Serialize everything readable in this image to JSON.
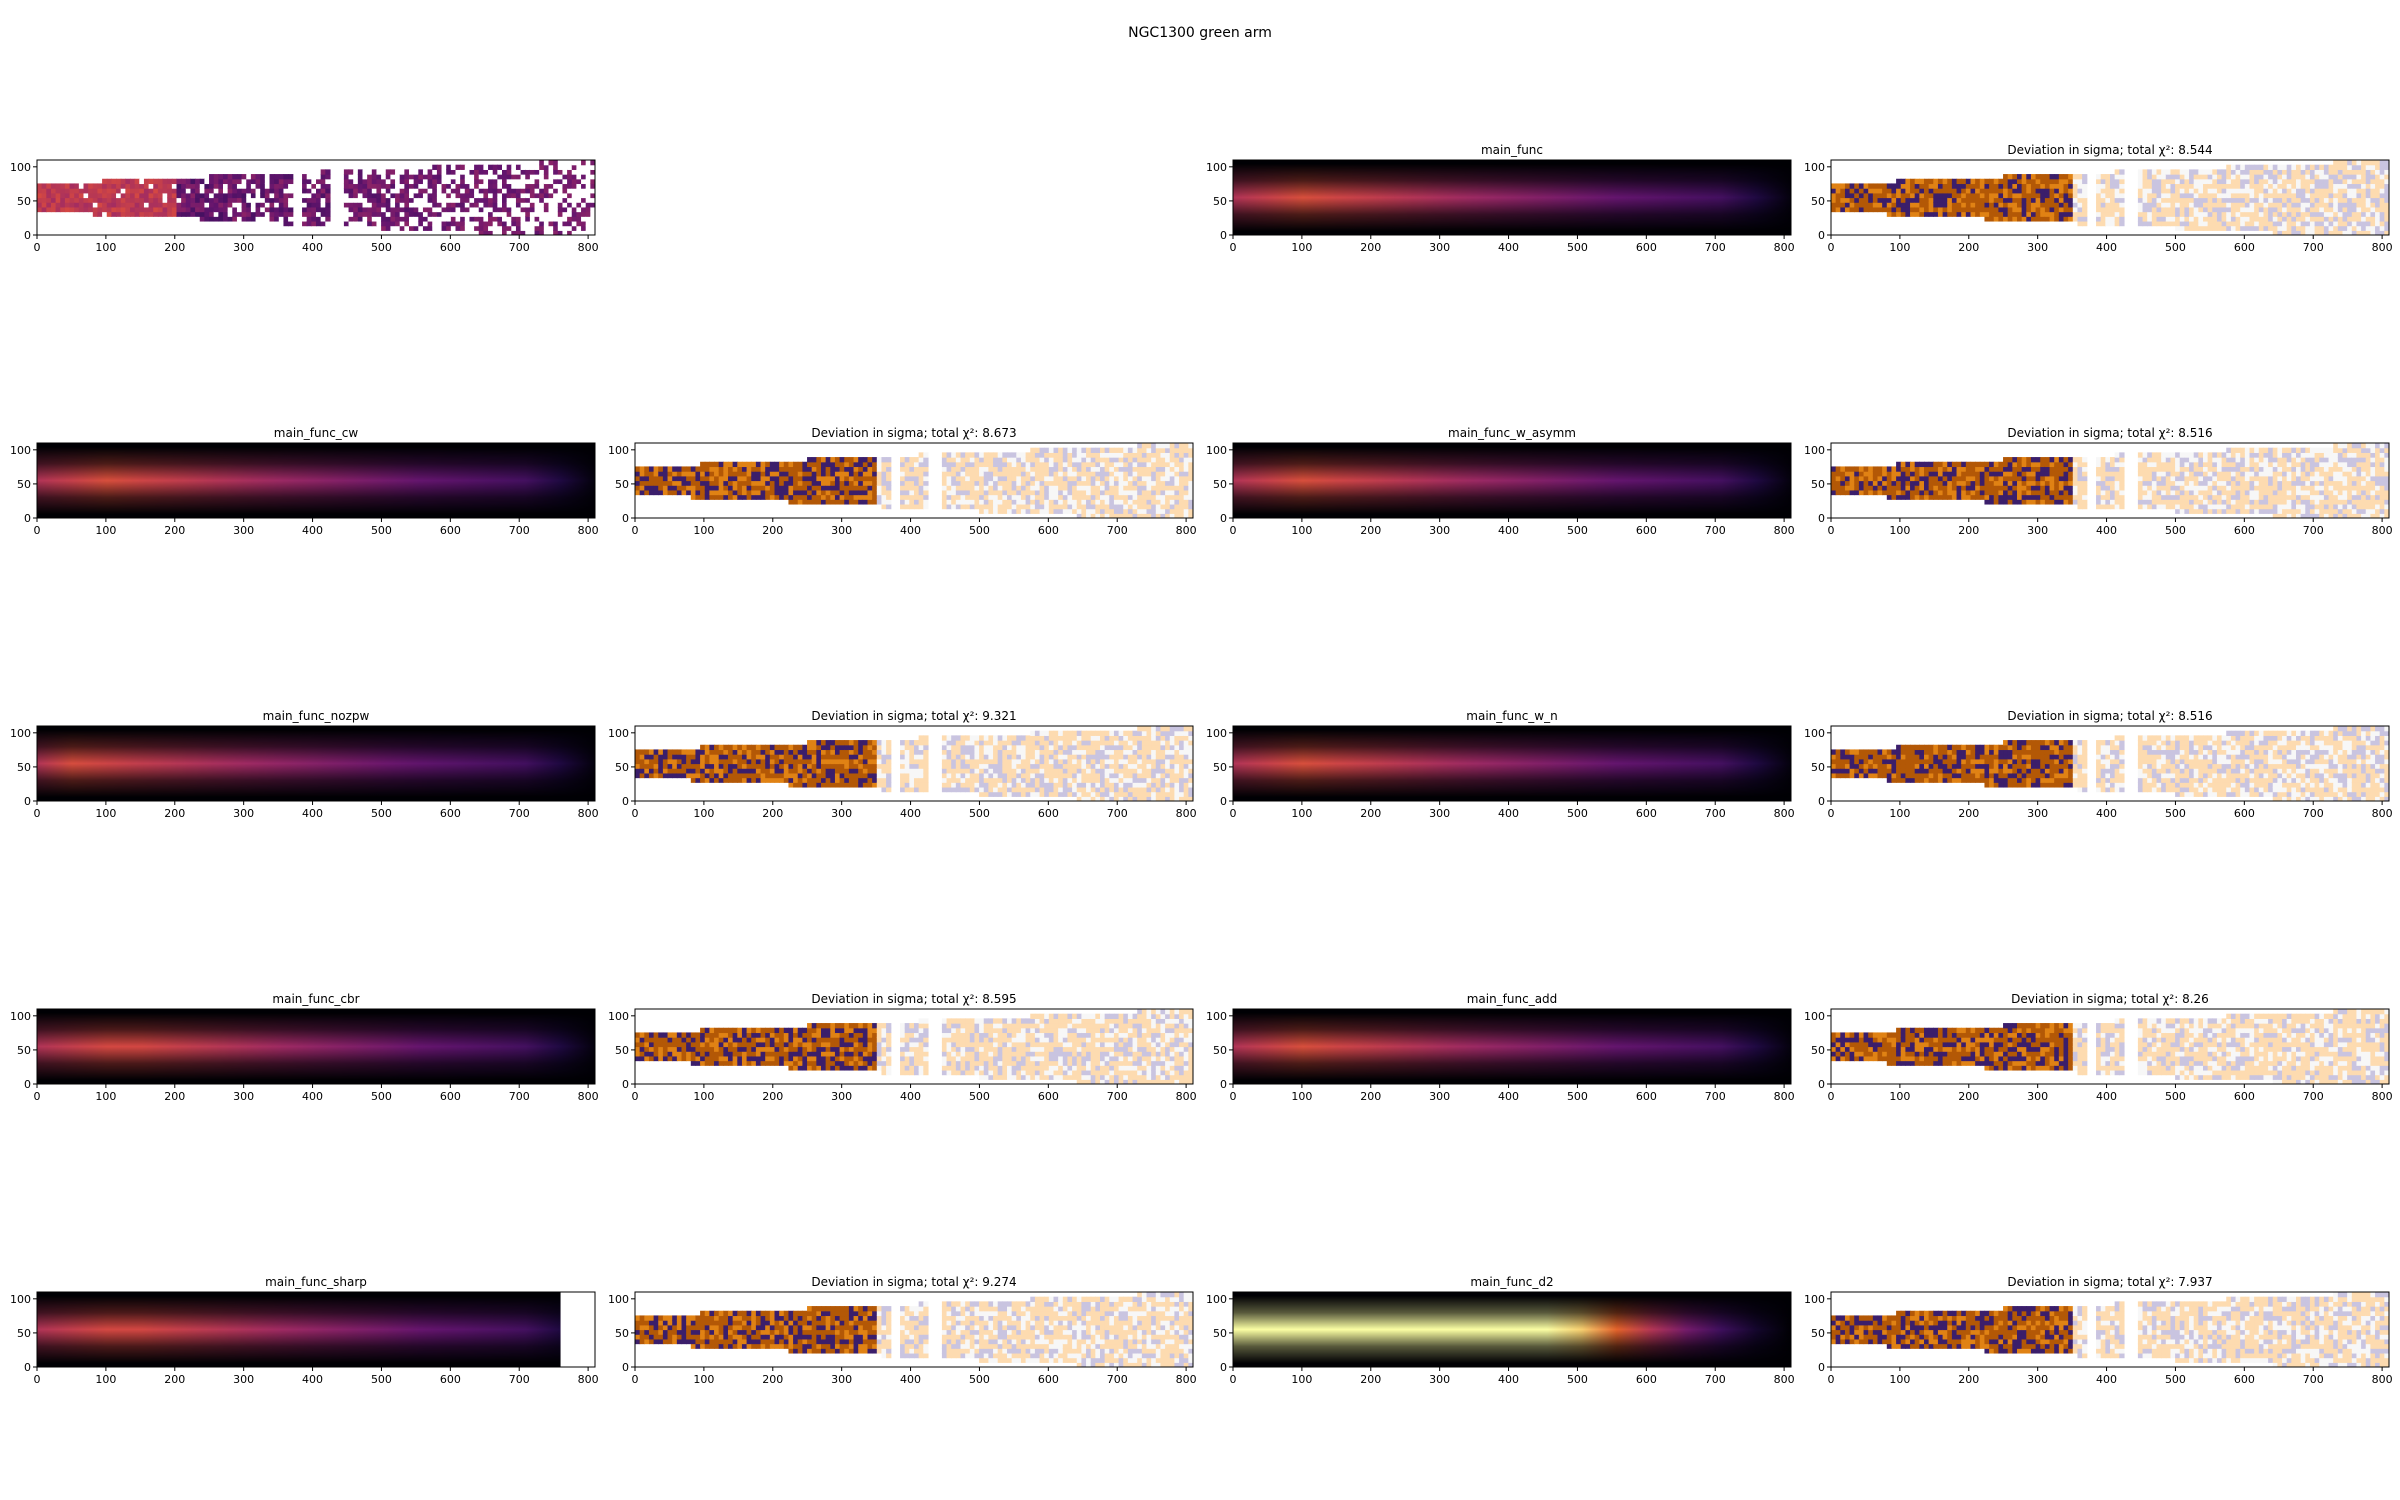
{
  "figure": {
    "suptitle": "NGC1300 green arm"
  },
  "chart_data": [
    {
      "type": "heatmap",
      "panel": "data",
      "title": "",
      "cmap": "inferno",
      "xlim": [
        0,
        810
      ],
      "ylim": [
        0,
        110
      ],
      "xticks": [
        0,
        100,
        200,
        300,
        400,
        500,
        600,
        700,
        800
      ],
      "yticks": [
        0,
        50,
        100
      ]
    },
    {
      "type": "heatmap",
      "panel": "model",
      "title": "main_func",
      "cmap": "inferno",
      "xlim": [
        0,
        810
      ],
      "ylim": [
        0,
        110
      ],
      "xticks": [
        0,
        100,
        200,
        300,
        400,
        500,
        600,
        700,
        800
      ],
      "yticks": [
        0,
        50,
        100
      ]
    },
    {
      "type": "heatmap",
      "panel": "residual",
      "title": "Deviation in sigma; total χ²: 8.544",
      "chi2": 8.544,
      "cmap": "PuOr",
      "xlim": [
        0,
        810
      ],
      "ylim": [
        0,
        110
      ],
      "xticks": [
        0,
        100,
        200,
        300,
        400,
        500,
        600,
        700,
        800
      ],
      "yticks": [
        0,
        50,
        100
      ]
    },
    {
      "type": "heatmap",
      "panel": "model",
      "title": "main_func_cw",
      "cmap": "inferno",
      "xlim": [
        0,
        810
      ],
      "ylim": [
        0,
        110
      ],
      "xticks": [
        0,
        100,
        200,
        300,
        400,
        500,
        600,
        700,
        800
      ],
      "yticks": [
        0,
        50,
        100
      ]
    },
    {
      "type": "heatmap",
      "panel": "residual",
      "title": "Deviation in sigma; total χ²: 8.673",
      "chi2": 8.673,
      "cmap": "PuOr",
      "xlim": [
        0,
        810
      ],
      "ylim": [
        0,
        110
      ],
      "xticks": [
        0,
        100,
        200,
        300,
        400,
        500,
        600,
        700,
        800
      ],
      "yticks": [
        0,
        50,
        100
      ]
    },
    {
      "type": "heatmap",
      "panel": "model",
      "title": "main_func_w_asymm",
      "cmap": "inferno",
      "xlim": [
        0,
        810
      ],
      "ylim": [
        0,
        110
      ],
      "xticks": [
        0,
        100,
        200,
        300,
        400,
        500,
        600,
        700,
        800
      ],
      "yticks": [
        0,
        50,
        100
      ]
    },
    {
      "type": "heatmap",
      "panel": "residual",
      "title": "Deviation in sigma; total χ²: 8.516",
      "chi2": 8.516,
      "cmap": "PuOr",
      "xlim": [
        0,
        810
      ],
      "ylim": [
        0,
        110
      ],
      "xticks": [
        0,
        100,
        200,
        300,
        400,
        500,
        600,
        700,
        800
      ],
      "yticks": [
        0,
        50,
        100
      ]
    },
    {
      "type": "heatmap",
      "panel": "model",
      "title": "main_func_nozpw",
      "cmap": "inferno",
      "xlim": [
        0,
        810
      ],
      "ylim": [
        0,
        110
      ],
      "xticks": [
        0,
        100,
        200,
        300,
        400,
        500,
        600,
        700,
        800
      ],
      "yticks": [
        0,
        50,
        100
      ]
    },
    {
      "type": "heatmap",
      "panel": "residual",
      "title": "Deviation in sigma; total χ²: 9.321",
      "chi2": 9.321,
      "cmap": "PuOr",
      "xlim": [
        0,
        810
      ],
      "ylim": [
        0,
        110
      ],
      "xticks": [
        0,
        100,
        200,
        300,
        400,
        500,
        600,
        700,
        800
      ],
      "yticks": [
        0,
        50,
        100
      ]
    },
    {
      "type": "heatmap",
      "panel": "model",
      "title": "main_func_w_n",
      "cmap": "inferno",
      "xlim": [
        0,
        810
      ],
      "ylim": [
        0,
        110
      ],
      "xticks": [
        0,
        100,
        200,
        300,
        400,
        500,
        600,
        700,
        800
      ],
      "yticks": [
        0,
        50,
        100
      ]
    },
    {
      "type": "heatmap",
      "panel": "residual",
      "title": "Deviation in sigma; total χ²: 8.516",
      "chi2": 8.516,
      "cmap": "PuOr",
      "xlim": [
        0,
        810
      ],
      "ylim": [
        0,
        110
      ],
      "xticks": [
        0,
        100,
        200,
        300,
        400,
        500,
        600,
        700,
        800
      ],
      "yticks": [
        0,
        50,
        100
      ]
    },
    {
      "type": "heatmap",
      "panel": "model",
      "title": "main_func_cbr",
      "cmap": "inferno",
      "xlim": [
        0,
        810
      ],
      "ylim": [
        0,
        110
      ],
      "xticks": [
        0,
        100,
        200,
        300,
        400,
        500,
        600,
        700,
        800
      ],
      "yticks": [
        0,
        50,
        100
      ]
    },
    {
      "type": "heatmap",
      "panel": "residual",
      "title": "Deviation in sigma; total χ²: 8.595",
      "chi2": 8.595,
      "cmap": "PuOr",
      "xlim": [
        0,
        810
      ],
      "ylim": [
        0,
        110
      ],
      "xticks": [
        0,
        100,
        200,
        300,
        400,
        500,
        600,
        700,
        800
      ],
      "yticks": [
        0,
        50,
        100
      ]
    },
    {
      "type": "heatmap",
      "panel": "model",
      "title": "main_func_add",
      "cmap": "inferno",
      "xlim": [
        0,
        810
      ],
      "ylim": [
        0,
        110
      ],
      "xticks": [
        0,
        100,
        200,
        300,
        400,
        500,
        600,
        700,
        800
      ],
      "yticks": [
        0,
        50,
        100
      ]
    },
    {
      "type": "heatmap",
      "panel": "residual",
      "title": "Deviation in sigma; total χ²: 8.26",
      "chi2": 8.26,
      "cmap": "PuOr",
      "xlim": [
        0,
        810
      ],
      "ylim": [
        0,
        110
      ],
      "xticks": [
        0,
        100,
        200,
        300,
        400,
        500,
        600,
        700,
        800
      ],
      "yticks": [
        0,
        50,
        100
      ]
    },
    {
      "type": "heatmap",
      "panel": "model",
      "title": "main_func_sharp",
      "cmap": "inferno",
      "xlim": [
        0,
        810
      ],
      "ylim": [
        0,
        110
      ],
      "model_extent_x": 760,
      "xticks": [
        0,
        100,
        200,
        300,
        400,
        500,
        600,
        700,
        800
      ],
      "yticks": [
        0,
        50,
        100
      ]
    },
    {
      "type": "heatmap",
      "panel": "residual",
      "title": "Deviation in sigma; total χ²: 9.274",
      "chi2": 9.274,
      "cmap": "PuOr",
      "xlim": [
        0,
        810
      ],
      "ylim": [
        0,
        110
      ],
      "xticks": [
        0,
        100,
        200,
        300,
        400,
        500,
        600,
        700,
        800
      ],
      "yticks": [
        0,
        50,
        100
      ]
    },
    {
      "type": "heatmap",
      "panel": "model",
      "title": "main_func_d2",
      "cmap": "inferno",
      "xlim": [
        0,
        810
      ],
      "ylim": [
        0,
        110
      ],
      "xticks": [
        0,
        100,
        200,
        300,
        400,
        500,
        600,
        700,
        800
      ],
      "yticks": [
        0,
        50,
        100
      ]
    },
    {
      "type": "heatmap",
      "panel": "residual",
      "title": "Deviation in sigma; total χ²: 7.937",
      "chi2": 7.937,
      "cmap": "PuOr",
      "xlim": [
        0,
        810
      ],
      "ylim": [
        0,
        110
      ],
      "xticks": [
        0,
        100,
        200,
        300,
        400,
        500,
        600,
        700,
        800
      ],
      "yticks": [
        0,
        50,
        100
      ]
    }
  ]
}
